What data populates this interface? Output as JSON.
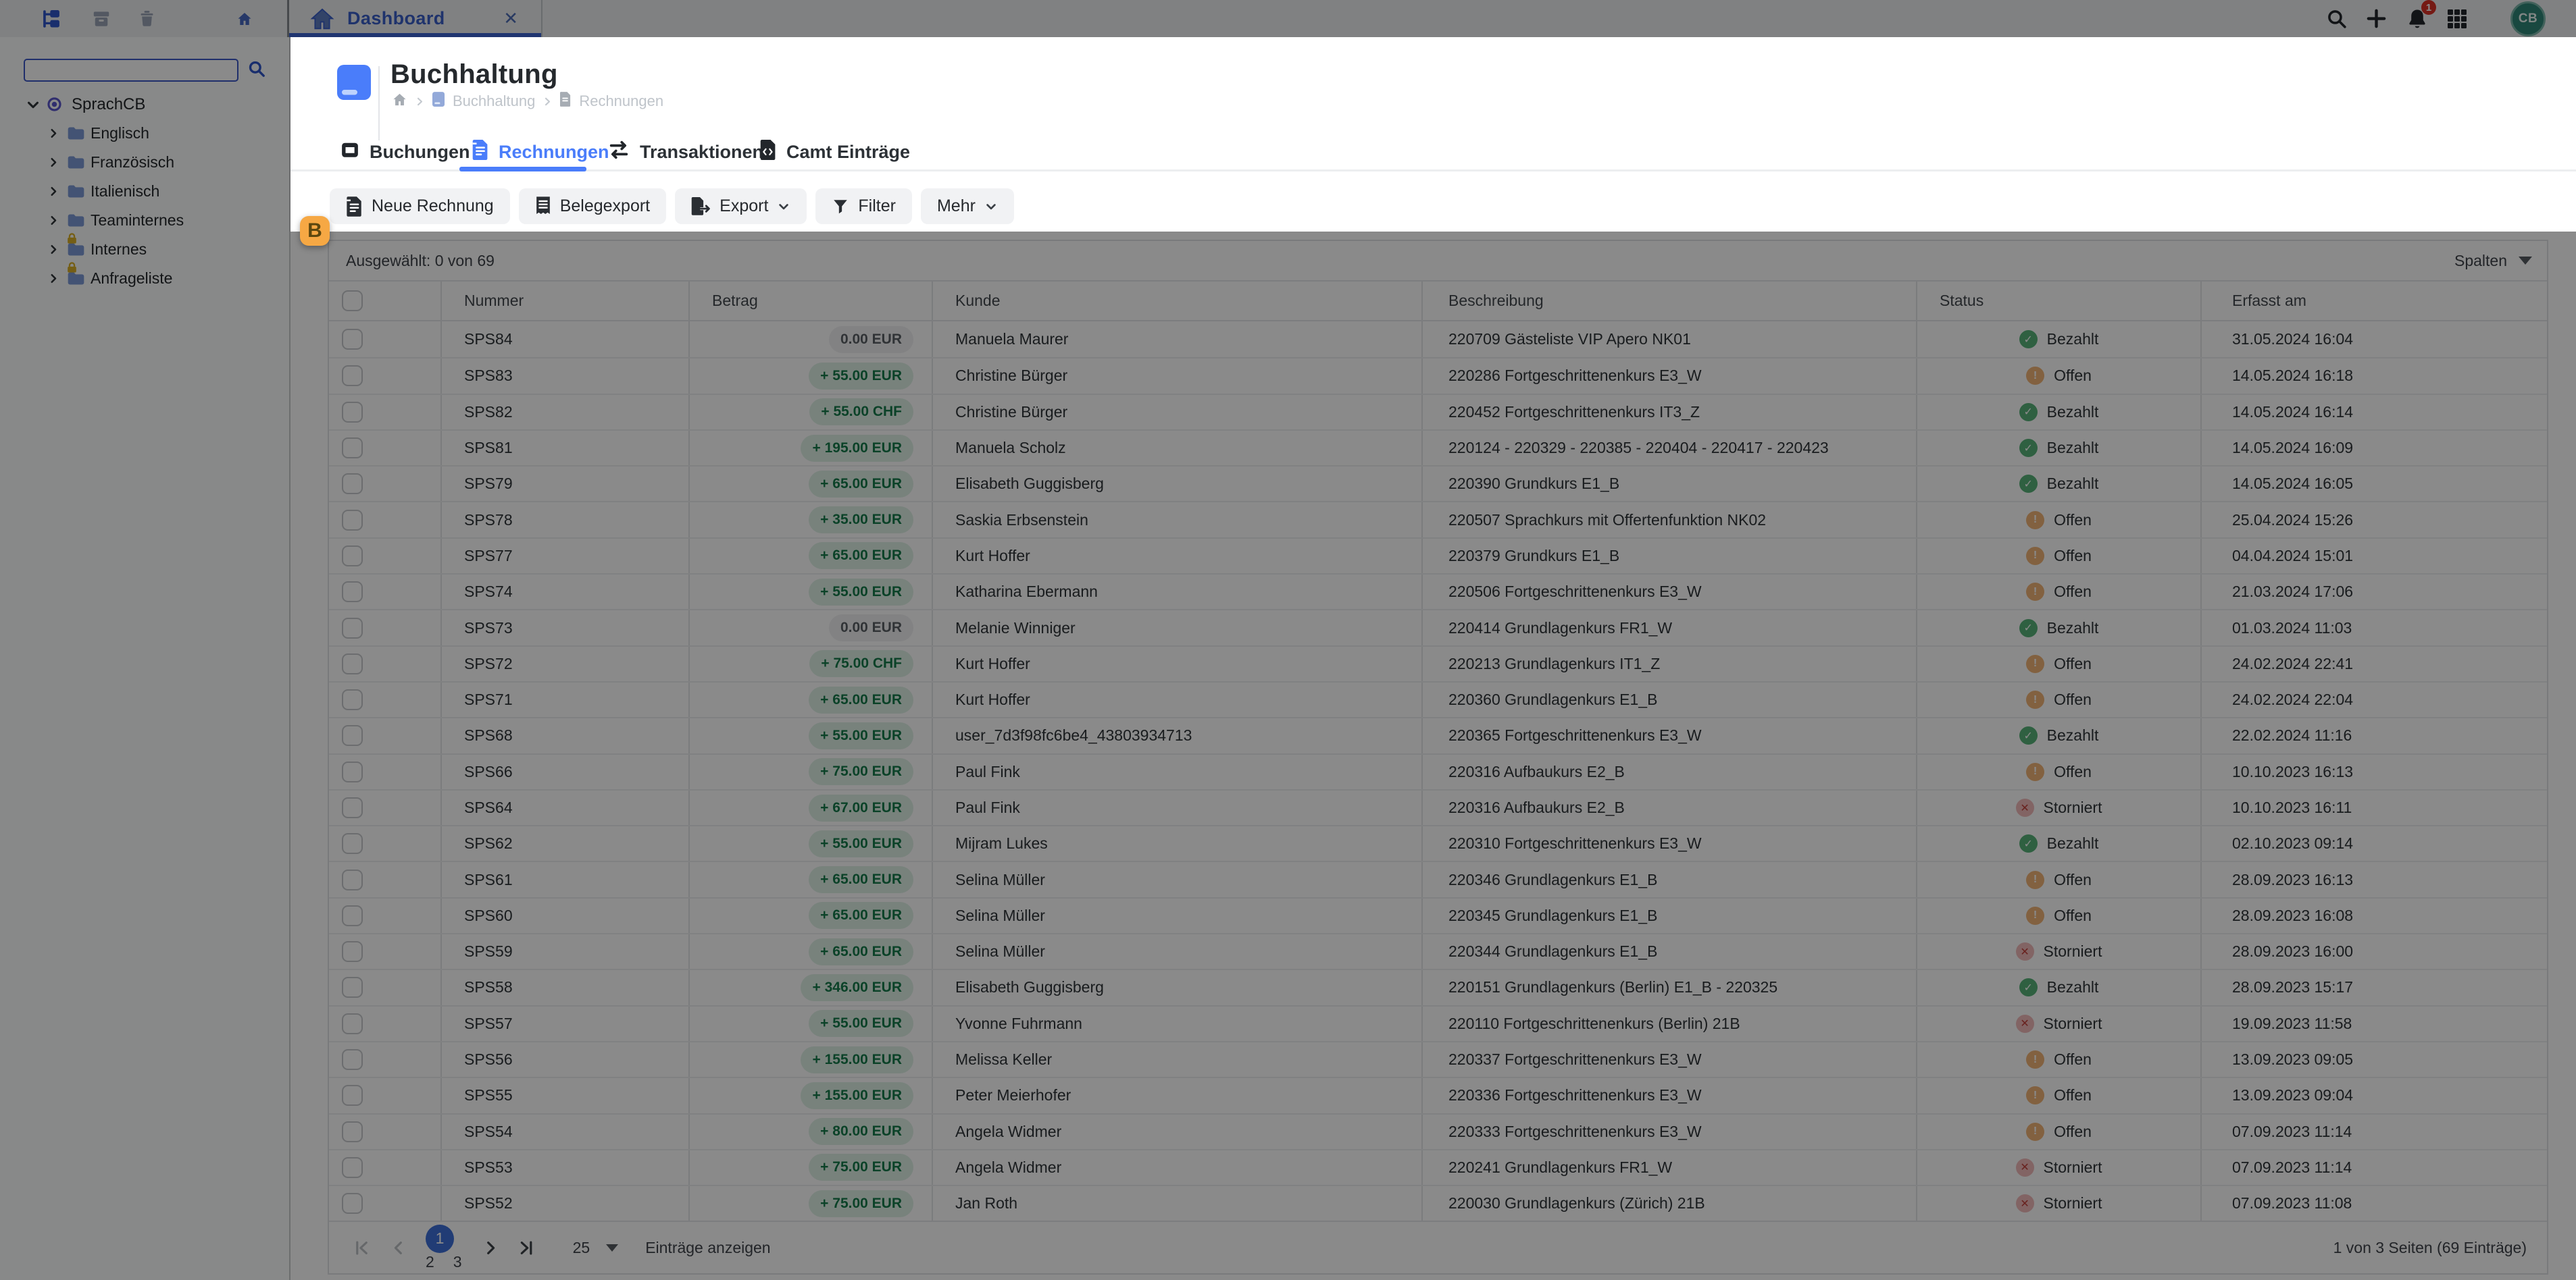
{
  "topbar": {
    "tab_title": "Dashboard",
    "notification_count": "1",
    "avatar_initials": "CB"
  },
  "sidebar": {
    "search_value": "",
    "tree": [
      {
        "label": "SprachCB",
        "type": "root",
        "locked": false
      },
      {
        "label": "Englisch",
        "type": "child",
        "locked": false
      },
      {
        "label": "Französisch",
        "type": "child",
        "locked": false
      },
      {
        "label": "Italienisch",
        "type": "child",
        "locked": false
      },
      {
        "label": "Teaminternes",
        "type": "child",
        "locked": false
      },
      {
        "label": "Internes",
        "type": "child",
        "locked": true
      },
      {
        "label": "Anfrageliste",
        "type": "child",
        "locked": true
      }
    ]
  },
  "page": {
    "title": "Buchhaltung",
    "crumbs": [
      "Buchhaltung",
      "Rechnungen"
    ],
    "tabs": [
      {
        "label": "Buchungen",
        "icon": "journal-icon",
        "active": false
      },
      {
        "label": "Rechnungen",
        "icon": "invoice-icon",
        "active": true
      },
      {
        "label": "Transaktionen",
        "icon": "transfer-icon",
        "active": false
      },
      {
        "label": "Camt Einträge",
        "icon": "camt-file-icon",
        "active": false
      }
    ],
    "toolbar": {
      "new_invoice": "Neue Rechnung",
      "receipt_export": "Belegexport",
      "export": "Export",
      "filter": "Filter",
      "more": "Mehr"
    }
  },
  "table": {
    "selection_summary": "Ausgewählt: 0 von 69",
    "columns_button": "Spalten",
    "columns": [
      "Nummer",
      "Betrag",
      "Kunde",
      "Beschreibung",
      "Status",
      "Erfasst am"
    ],
    "statuses": {
      "bezahlt": {
        "label": "Bezahlt",
        "glyph": "✓"
      },
      "offen": {
        "label": "Offen",
        "glyph": "!"
      },
      "storniert": {
        "label": "Storniert",
        "glyph": "✕"
      }
    },
    "rows": [
      {
        "nr": "SPS84",
        "amount": "0.00 EUR",
        "amount_type": "zero",
        "kunde": "Manuela Maurer",
        "beschreibung": "220709 Gästeliste VIP Apero NK01",
        "status": "bezahlt",
        "erfasst": "31.05.2024 16:04"
      },
      {
        "nr": "SPS83",
        "amount": "+ 55.00 EUR",
        "amount_type": "pos",
        "kunde": "Christine Bürger",
        "beschreibung": "220286 Fortgeschrittenenkurs E3_W",
        "status": "offen",
        "erfasst": "14.05.2024 16:18"
      },
      {
        "nr": "SPS82",
        "amount": "+ 55.00 CHF",
        "amount_type": "pos",
        "kunde": "Christine Bürger",
        "beschreibung": "220452 Fortgeschrittenenkurs IT3_Z",
        "status": "bezahlt",
        "erfasst": "14.05.2024 16:14"
      },
      {
        "nr": "SPS81",
        "amount": "+ 195.00 EUR",
        "amount_type": "pos",
        "kunde": "Manuela Scholz",
        "beschreibung": "220124 - 220329 - 220385 - 220404 - 220417 - 220423",
        "status": "bezahlt",
        "erfasst": "14.05.2024 16:09"
      },
      {
        "nr": "SPS79",
        "amount": "+ 65.00 EUR",
        "amount_type": "pos",
        "kunde": "Elisabeth Guggisberg",
        "beschreibung": "220390 Grundkurs E1_B",
        "status": "bezahlt",
        "erfasst": "14.05.2024 16:05"
      },
      {
        "nr": "SPS78",
        "amount": "+ 35.00 EUR",
        "amount_type": "pos",
        "kunde": "Saskia Erbsenstein",
        "beschreibung": "220507 Sprachkurs mit Offertenfunktion NK02",
        "status": "offen",
        "erfasst": "25.04.2024 15:26"
      },
      {
        "nr": "SPS77",
        "amount": "+ 65.00 EUR",
        "amount_type": "pos",
        "kunde": "Kurt Hoffer",
        "beschreibung": "220379 Grundkurs E1_B",
        "status": "offen",
        "erfasst": "04.04.2024 15:01"
      },
      {
        "nr": "SPS74",
        "amount": "+ 55.00 EUR",
        "amount_type": "pos",
        "kunde": "Katharina Ebermann",
        "beschreibung": "220506 Fortgeschrittenenkurs E3_W",
        "status": "offen",
        "erfasst": "21.03.2024 17:06"
      },
      {
        "nr": "SPS73",
        "amount": "0.00 EUR",
        "amount_type": "zero",
        "kunde": "Melanie Winniger",
        "beschreibung": "220414 Grundlagenkurs FR1_W",
        "status": "bezahlt",
        "erfasst": "01.03.2024 11:03"
      },
      {
        "nr": "SPS72",
        "amount": "+ 75.00 CHF",
        "amount_type": "pos",
        "kunde": "Kurt Hoffer",
        "beschreibung": "220213 Grundlagenkurs IT1_Z",
        "status": "offen",
        "erfasst": "24.02.2024 22:41"
      },
      {
        "nr": "SPS71",
        "amount": "+ 65.00 EUR",
        "amount_type": "pos",
        "kunde": "Kurt Hoffer",
        "beschreibung": "220360 Grundlagenkurs E1_B",
        "status": "offen",
        "erfasst": "24.02.2024 22:04"
      },
      {
        "nr": "SPS68",
        "amount": "+ 55.00 EUR",
        "amount_type": "pos",
        "kunde": "user_7d3f98fc6be4_43803934713",
        "beschreibung": "220365 Fortgeschrittenenkurs E3_W",
        "status": "bezahlt",
        "erfasst": "22.02.2024 11:16"
      },
      {
        "nr": "SPS66",
        "amount": "+ 75.00 EUR",
        "amount_type": "pos",
        "kunde": "Paul Fink",
        "beschreibung": "220316 Aufbaukurs E2_B",
        "status": "offen",
        "erfasst": "10.10.2023 16:13"
      },
      {
        "nr": "SPS64",
        "amount": "+ 67.00 EUR",
        "amount_type": "pos",
        "kunde": "Paul Fink",
        "beschreibung": "220316 Aufbaukurs E2_B",
        "status": "storniert",
        "erfasst": "10.10.2023 16:11"
      },
      {
        "nr": "SPS62",
        "amount": "+ 55.00 EUR",
        "amount_type": "pos",
        "kunde": "Mijram Lukes",
        "beschreibung": "220310 Fortgeschrittenenkurs E3_W",
        "status": "bezahlt",
        "erfasst": "02.10.2023 09:14"
      },
      {
        "nr": "SPS61",
        "amount": "+ 65.00 EUR",
        "amount_type": "pos",
        "kunde": "Selina Müller",
        "beschreibung": "220346 Grundlagenkurs E1_B",
        "status": "offen",
        "erfasst": "28.09.2023 16:13"
      },
      {
        "nr": "SPS60",
        "amount": "+ 65.00 EUR",
        "amount_type": "pos",
        "kunde": "Selina Müller",
        "beschreibung": "220345 Grundlagenkurs E1_B",
        "status": "offen",
        "erfasst": "28.09.2023 16:08"
      },
      {
        "nr": "SPS59",
        "amount": "+ 65.00 EUR",
        "amount_type": "pos",
        "kunde": "Selina Müller",
        "beschreibung": "220344 Grundlagenkurs E1_B",
        "status": "storniert",
        "erfasst": "28.09.2023 16:00"
      },
      {
        "nr": "SPS58",
        "amount": "+ 346.00 EUR",
        "amount_type": "pos",
        "kunde": "Elisabeth Guggisberg",
        "beschreibung": "220151 Grundlagenkurs (Berlin) E1_B - 220325",
        "status": "bezahlt",
        "erfasst": "28.09.2023 15:17"
      },
      {
        "nr": "SPS57",
        "amount": "+ 55.00 EUR",
        "amount_type": "pos",
        "kunde": "Yvonne Fuhrmann",
        "beschreibung": "220110 Fortgeschrittenenkurs (Berlin) 21B",
        "status": "storniert",
        "erfasst": "19.09.2023 11:58"
      },
      {
        "nr": "SPS56",
        "amount": "+ 155.00 EUR",
        "amount_type": "pos",
        "kunde": "Melissa Keller",
        "beschreibung": "220337 Fortgeschrittenenkurs E3_W",
        "status": "offen",
        "erfasst": "13.09.2023 09:05"
      },
      {
        "nr": "SPS55",
        "amount": "+ 155.00 EUR",
        "amount_type": "pos",
        "kunde": "Peter Meierhofer",
        "beschreibung": "220336 Fortgeschrittenenkurs E3_W",
        "status": "offen",
        "erfasst": "13.09.2023 09:04"
      },
      {
        "nr": "SPS54",
        "amount": "+ 80.00 EUR",
        "amount_type": "pos",
        "kunde": "Angela Widmer",
        "beschreibung": "220333 Fortgeschrittenenkurs E3_W",
        "status": "offen",
        "erfasst": "07.09.2023 11:14"
      },
      {
        "nr": "SPS53",
        "amount": "+ 75.00 EUR",
        "amount_type": "pos",
        "kunde": "Angela Widmer",
        "beschreibung": "220241 Grundlagenkurs FR1_W",
        "status": "storniert",
        "erfasst": "07.09.2023 11:14"
      },
      {
        "nr": "SPS52",
        "amount": "+ 75.00 EUR",
        "amount_type": "pos",
        "kunde": "Jan Roth",
        "beschreibung": "220030 Grundlagenkurs (Zürich) 21B",
        "status": "storniert",
        "erfasst": "07.09.2023 11:08"
      }
    ]
  },
  "pagination": {
    "pages": [
      "1",
      "2",
      "3"
    ],
    "active_page": "1",
    "page_size": "25",
    "page_size_label": "Einträge anzeigen",
    "summary": "1 von 3 Seiten (69 Einträge)"
  },
  "annotation": {
    "pin_label": "B"
  },
  "colors": {
    "accent_blue": "#4a7dfa",
    "paid_green": "#57b279",
    "open_orange": "#f0b477",
    "cancelled_red": "#c2403a",
    "pin_orange": "#f6a844",
    "avatar_teal": "#2f8577",
    "badge_red": "#d93025"
  }
}
